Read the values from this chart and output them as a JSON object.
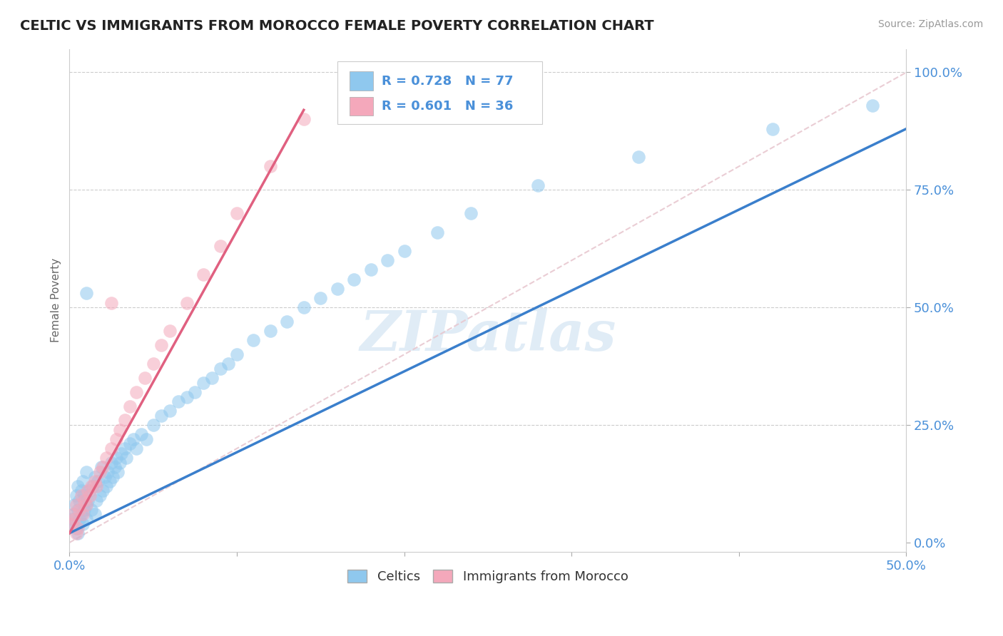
{
  "title": "CELTIC VS IMMIGRANTS FROM MOROCCO FEMALE POVERTY CORRELATION CHART",
  "source": "Source: ZipAtlas.com",
  "ylabel": "Female Poverty",
  "xlim": [
    0.0,
    0.5
  ],
  "ylim": [
    -0.02,
    1.05
  ],
  "x_ticks": [
    0.0,
    0.1,
    0.2,
    0.3,
    0.4,
    0.5
  ],
  "x_tick_labels": [
    "0.0%",
    "",
    "",
    "",
    "",
    "50.0%"
  ],
  "y_tick_labels_right": [
    "100.0%",
    "75.0%",
    "50.0%",
    "25.0%",
    "0.0%"
  ],
  "y_ticks_right": [
    1.0,
    0.75,
    0.5,
    0.25,
    0.0
  ],
  "grid_color": "#cccccc",
  "background_color": "#ffffff",
  "legend_R1": "R = 0.728",
  "legend_N1": "N = 77",
  "legend_R2": "R = 0.601",
  "legend_N2": "N = 36",
  "color_celtic": "#8FC8EE",
  "color_morocco": "#F4A8BB",
  "line_color_celtic": "#3A7FCC",
  "line_color_morocco": "#E06080",
  "diagonal_color": "#E8C8D0",
  "celtics_x": [
    0.001,
    0.002,
    0.003,
    0.003,
    0.004,
    0.004,
    0.005,
    0.005,
    0.005,
    0.006,
    0.006,
    0.007,
    0.007,
    0.008,
    0.008,
    0.009,
    0.009,
    0.01,
    0.01,
    0.01,
    0.011,
    0.012,
    0.013,
    0.014,
    0.015,
    0.015,
    0.016,
    0.017,
    0.018,
    0.019,
    0.02,
    0.021,
    0.022,
    0.023,
    0.024,
    0.025,
    0.026,
    0.027,
    0.028,
    0.029,
    0.03,
    0.031,
    0.033,
    0.034,
    0.036,
    0.038,
    0.04,
    0.043,
    0.046,
    0.05,
    0.055,
    0.06,
    0.065,
    0.07,
    0.075,
    0.08,
    0.085,
    0.09,
    0.095,
    0.1,
    0.11,
    0.12,
    0.13,
    0.14,
    0.15,
    0.16,
    0.17,
    0.18,
    0.19,
    0.2,
    0.22,
    0.24,
    0.28,
    0.34,
    0.42,
    0.48,
    0.01
  ],
  "celtics_y": [
    0.05,
    0.04,
    0.06,
    0.08,
    0.03,
    0.1,
    0.02,
    0.07,
    0.12,
    0.05,
    0.09,
    0.06,
    0.11,
    0.04,
    0.13,
    0.07,
    0.1,
    0.05,
    0.08,
    0.15,
    0.09,
    0.11,
    0.07,
    0.12,
    0.06,
    0.14,
    0.09,
    0.13,
    0.1,
    0.16,
    0.11,
    0.14,
    0.12,
    0.15,
    0.13,
    0.17,
    0.14,
    0.16,
    0.18,
    0.15,
    0.17,
    0.19,
    0.2,
    0.18,
    0.21,
    0.22,
    0.2,
    0.23,
    0.22,
    0.25,
    0.27,
    0.28,
    0.3,
    0.31,
    0.32,
    0.34,
    0.35,
    0.37,
    0.38,
    0.4,
    0.43,
    0.45,
    0.47,
    0.5,
    0.52,
    0.54,
    0.56,
    0.58,
    0.6,
    0.62,
    0.66,
    0.7,
    0.76,
    0.82,
    0.88,
    0.93,
    0.53
  ],
  "morocco_x": [
    0.001,
    0.002,
    0.003,
    0.004,
    0.005,
    0.006,
    0.007,
    0.008,
    0.009,
    0.01,
    0.011,
    0.012,
    0.013,
    0.015,
    0.016,
    0.018,
    0.02,
    0.022,
    0.025,
    0.028,
    0.03,
    0.033,
    0.036,
    0.04,
    0.045,
    0.05,
    0.055,
    0.06,
    0.07,
    0.08,
    0.09,
    0.1,
    0.12,
    0.14,
    0.004,
    0.025
  ],
  "morocco_y": [
    0.04,
    0.06,
    0.05,
    0.08,
    0.03,
    0.07,
    0.1,
    0.06,
    0.09,
    0.08,
    0.11,
    0.1,
    0.12,
    0.13,
    0.12,
    0.15,
    0.16,
    0.18,
    0.2,
    0.22,
    0.24,
    0.26,
    0.29,
    0.32,
    0.35,
    0.38,
    0.42,
    0.45,
    0.51,
    0.57,
    0.63,
    0.7,
    0.8,
    0.9,
    0.02,
    0.51
  ],
  "celtic_line_x": [
    0.0,
    0.5
  ],
  "celtic_line_y": [
    0.02,
    0.88
  ],
  "morocco_line_x": [
    0.0,
    0.14
  ],
  "morocco_line_y": [
    0.02,
    0.92
  ]
}
